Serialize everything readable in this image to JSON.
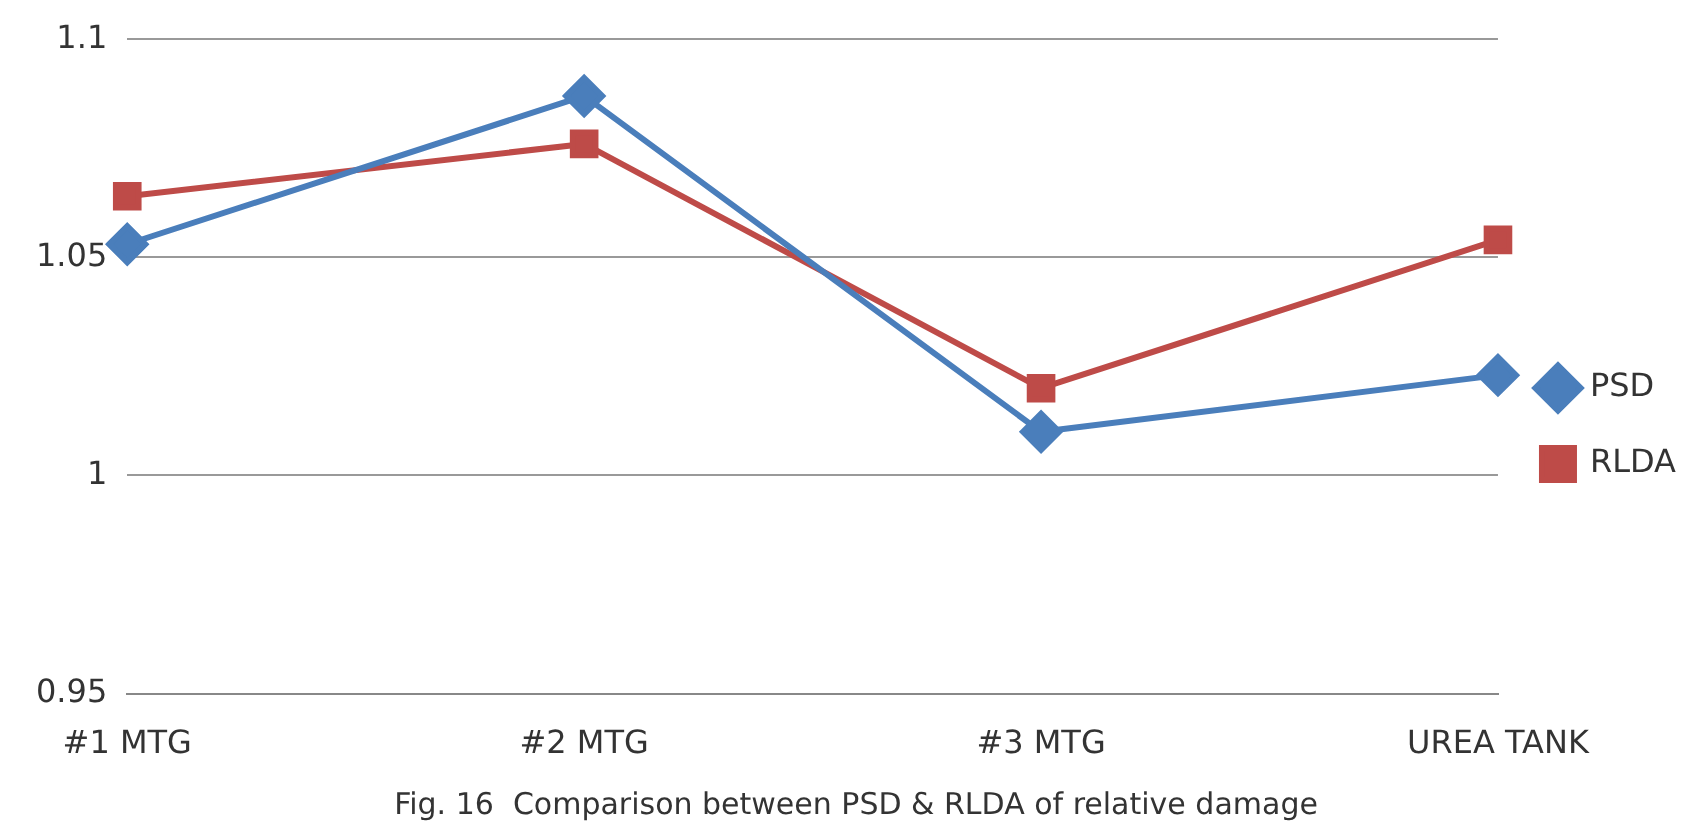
{
  "chart_data": {
    "type": "line",
    "title": "Fig. 16  Comparison between PSD & RLDA of relative damage",
    "categories": [
      "#1 MTG",
      "#2 MTG",
      "#3 MTG",
      "UREA TANK"
    ],
    "series": [
      {
        "name": "PSD",
        "color": "#4a7ebb",
        "marker": "diamond",
        "values": [
          1.053,
          1.087,
          1.01,
          1.023
        ]
      },
      {
        "name": "RLDA",
        "color": "#be4b48",
        "marker": "square",
        "values": [
          1.064,
          1.076,
          1.02,
          1.054
        ]
      }
    ],
    "ylim": [
      0.95,
      1.1
    ],
    "yticks": [
      0.95,
      1,
      1.05,
      1.1
    ],
    "grid": "y",
    "legend": "right",
    "line_style": "solid"
  }
}
